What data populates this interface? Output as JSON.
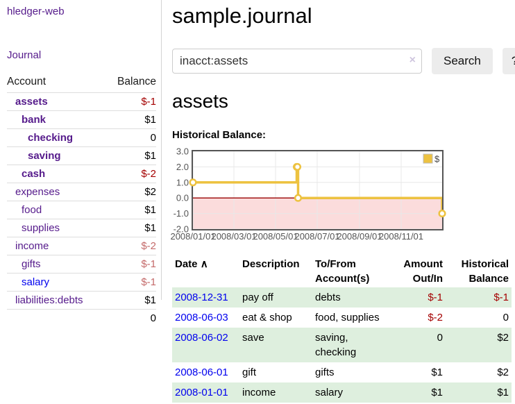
{
  "app": {
    "title": "hledger-web"
  },
  "sidebar": {
    "journal_link": "Journal",
    "accounts_table": {
      "headers": {
        "account": "Account",
        "balance": "Balance"
      },
      "rows": [
        {
          "name": "assets",
          "balance": "$-1",
          "level": 1,
          "bold": true
        },
        {
          "name": "bank",
          "balance": "$1",
          "level": 2,
          "bold": true
        },
        {
          "name": "checking",
          "balance": "0",
          "level": 3,
          "bold": true
        },
        {
          "name": "saving",
          "balance": "$1",
          "level": 3,
          "bold": true
        },
        {
          "name": "cash",
          "balance": "$-2",
          "level": 2,
          "bold": true
        },
        {
          "name": "expenses",
          "balance": "$2",
          "level": 1,
          "bold": false
        },
        {
          "name": "food",
          "balance": "$1",
          "level": 2,
          "bold": false
        },
        {
          "name": "supplies",
          "balance": "$1",
          "level": 2,
          "bold": false
        },
        {
          "name": "income",
          "balance": "$-2",
          "level": 1,
          "bold": false
        },
        {
          "name": "gifts",
          "balance": "$-1",
          "level": 2,
          "bold": false
        },
        {
          "name": "salary",
          "balance": "$-1",
          "level": 2,
          "bold": false,
          "unvisited": true
        },
        {
          "name": "liabilities:debts",
          "balance": "$1",
          "level": 1,
          "bold": false
        }
      ],
      "total": "0"
    }
  },
  "main": {
    "title": "sample.journal",
    "search": {
      "value": "inacct:assets",
      "clear_icon": "×",
      "button": "Search",
      "help_button": "?"
    },
    "account_heading": "assets",
    "table": {
      "sort_icon": "∧",
      "columns": [
        {
          "line1": "Date",
          "line2": ""
        },
        {
          "line1": "Description",
          "line2": ""
        },
        {
          "line1": "To/From",
          "line2": "Account(s)"
        },
        {
          "line1": "Amount",
          "line2": "Out/In"
        },
        {
          "line1": "Historical",
          "line2": "Balance"
        }
      ],
      "rows": [
        {
          "date": "2008-12-31",
          "description": "pay off",
          "accounts": "debts",
          "amount": "$-1",
          "balance": "$-1"
        },
        {
          "date": "2008-06-03",
          "description": "eat & shop",
          "accounts": "food, supplies",
          "amount": "$-2",
          "balance": "0"
        },
        {
          "date": "2008-06-02",
          "description": "save",
          "accounts": "saving, checking",
          "amount": "0",
          "balance": "$2"
        },
        {
          "date": "2008-06-01",
          "description": "gift",
          "accounts": "gifts",
          "amount": "$1",
          "balance": "$2"
        },
        {
          "date": "2008-01-01",
          "description": "income",
          "accounts": "salary",
          "amount": "$1",
          "balance": "$1"
        }
      ]
    }
  },
  "chart_data": {
    "type": "line",
    "style": "step",
    "title": "Historical Balance:",
    "series": [
      {
        "name": "$",
        "color": "#edc240",
        "points": [
          [
            "2008-01-01",
            1
          ],
          [
            "2008-06-01",
            2
          ],
          [
            "2008-06-02",
            2
          ],
          [
            "2008-06-03",
            0
          ],
          [
            "2008-12-31",
            -1
          ]
        ]
      }
    ],
    "x_range": [
      "2008-01-01",
      "2008-12-31"
    ],
    "x_tick_labels": [
      "2008/01/01",
      "2008/03/01",
      "2008/05/01",
      "2008/07/01",
      "2008/09/01",
      "2008/11/01"
    ],
    "y_ticks": [
      "3.0",
      "2.0",
      "1.0",
      "0.0",
      "-1.0",
      "-2.0"
    ],
    "ylim": [
      -2,
      3
    ],
    "grid": true,
    "legend_position": "top-right",
    "border_color": "#555555",
    "grid_color": "#e8e8e8",
    "zero_line_color": "#990000",
    "negative_region_color": "#fbdcdc",
    "tick_label_color": "#545454"
  }
}
